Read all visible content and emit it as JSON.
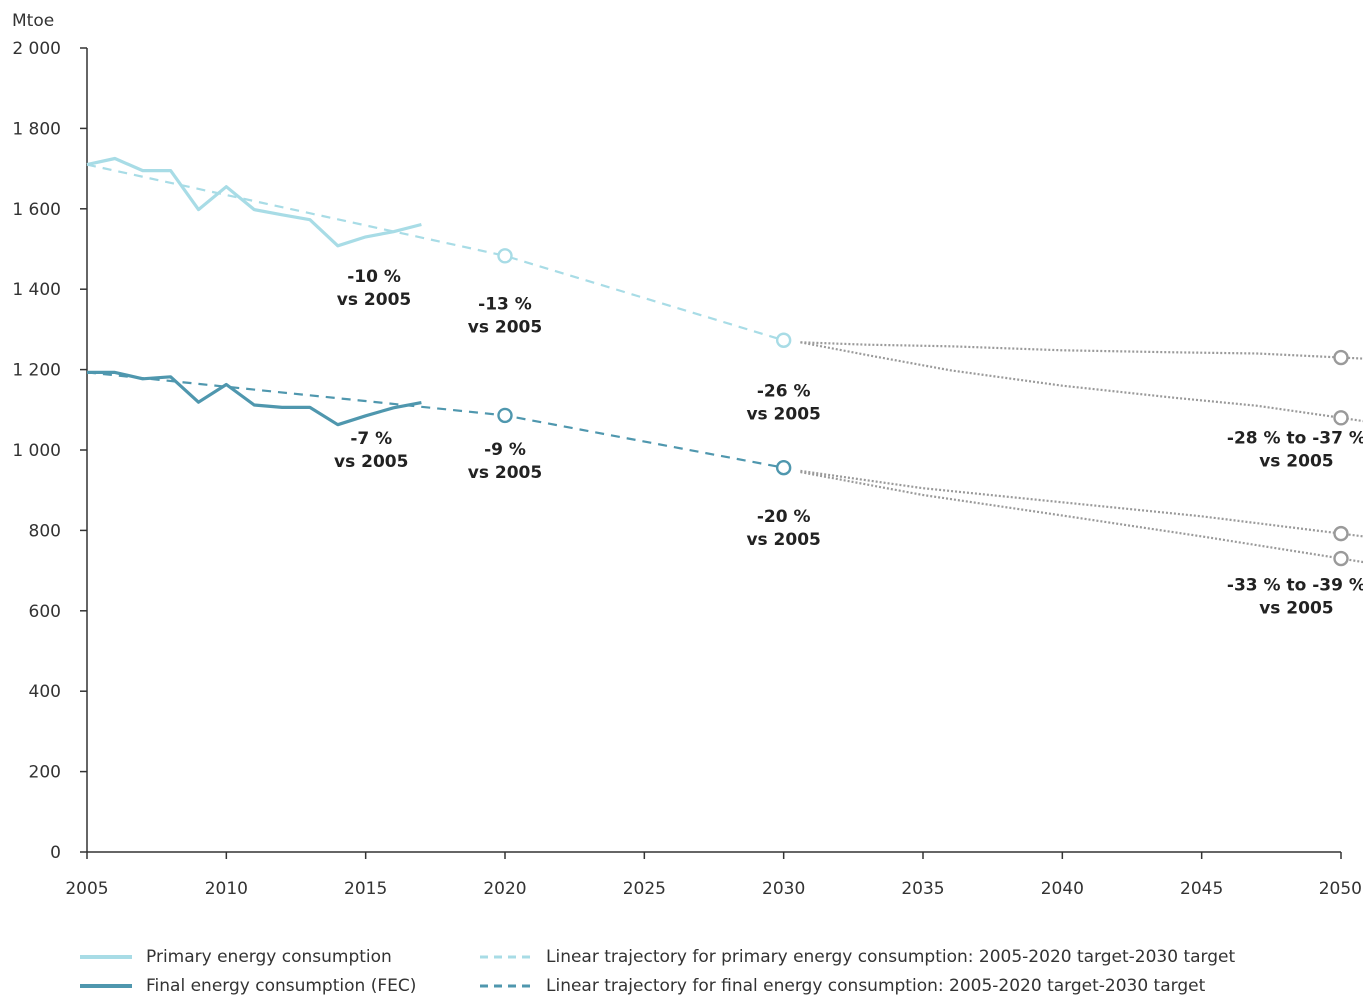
{
  "chart_data": {
    "type": "line",
    "unit_label": "Mtoe",
    "xlim": [
      2005,
      2050
    ],
    "ylim": [
      0,
      2000
    ],
    "x_ticks": [
      "2005",
      "2010",
      "2015",
      "2020",
      "2025",
      "2030",
      "2035",
      "2040",
      "2045",
      "2050"
    ],
    "y_ticks": [
      "0",
      "200",
      "400",
      "600",
      "800",
      "1 000",
      "1 200",
      "1 400",
      "1 600",
      "1 800",
      "2 000"
    ],
    "series": [
      {
        "name": "Primary energy consumption",
        "style": "solid",
        "color": "#a8dce6",
        "points": [
          [
            2005,
            1710
          ],
          [
            2006,
            1725
          ],
          [
            2007,
            1695
          ],
          [
            2008,
            1695
          ],
          [
            2009,
            1598
          ],
          [
            2010,
            1655
          ],
          [
            2011,
            1598
          ],
          [
            2012,
            1585
          ],
          [
            2013,
            1573
          ],
          [
            2014,
            1508
          ],
          [
            2015,
            1530
          ],
          [
            2016,
            1543
          ],
          [
            2017,
            1561
          ]
        ]
      },
      {
        "name": "Final energy consumption (FEC)",
        "style": "solid",
        "color": "#4f97ae",
        "points": [
          [
            2005,
            1193
          ],
          [
            2006,
            1193
          ],
          [
            2007,
            1177
          ],
          [
            2008,
            1182
          ],
          [
            2009,
            1119
          ],
          [
            2010,
            1163
          ],
          [
            2011,
            1112
          ],
          [
            2012,
            1106
          ],
          [
            2013,
            1106
          ],
          [
            2014,
            1063
          ],
          [
            2015,
            1085
          ],
          [
            2016,
            1105
          ],
          [
            2017,
            1118
          ]
        ]
      },
      {
        "name": "Linear trajectory for primary energy consumption: 2005-2020 target-2030 target",
        "style": "dashed",
        "color": "#a8dce6",
        "points": [
          [
            2005,
            1710
          ],
          [
            2020,
            1483
          ],
          [
            2030,
            1273
          ]
        ]
      },
      {
        "name": "Linear trajectory for final energy consumption: 2005-2020 target-2030 target",
        "style": "dashed",
        "color": "#4f97ae",
        "points": [
          [
            2005,
            1193
          ],
          [
            2020,
            1086
          ],
          [
            2030,
            956
          ]
        ]
      }
    ],
    "projections": [
      {
        "style": "dotted",
        "color": "#9a9a9a",
        "points": [
          [
            2030.6,
            1268
          ],
          [
            2033,
            1262
          ],
          [
            2036,
            1258
          ],
          [
            2040,
            1248
          ],
          [
            2044,
            1243
          ],
          [
            2047,
            1240
          ],
          [
            2050,
            1230
          ]
        ]
      },
      {
        "style": "dotted",
        "color": "#9a9a9a",
        "points": [
          [
            2030.6,
            1268
          ],
          [
            2033,
            1236
          ],
          [
            2036,
            1198
          ],
          [
            2040,
            1160
          ],
          [
            2044,
            1130
          ],
          [
            2047,
            1110
          ],
          [
            2050,
            1080
          ]
        ]
      },
      {
        "style": "dotted",
        "color": "#9a9a9a",
        "points": [
          [
            2030.6,
            948
          ],
          [
            2035,
            905
          ],
          [
            2040,
            870
          ],
          [
            2045,
            835
          ],
          [
            2050,
            792
          ]
        ]
      },
      {
        "style": "dotted",
        "color": "#9a9a9a",
        "points": [
          [
            2030.6,
            945
          ],
          [
            2035,
            888
          ],
          [
            2040,
            837
          ],
          [
            2045,
            785
          ],
          [
            2050,
            730
          ]
        ]
      }
    ],
    "markers": [
      {
        "x": 2020,
        "y": 1483,
        "color": "#a8dce6"
      },
      {
        "x": 2030,
        "y": 1273,
        "color": "#a8dce6"
      },
      {
        "x": 2020,
        "y": 1086,
        "color": "#4f97ae"
      },
      {
        "x": 2030,
        "y": 956,
        "color": "#4f97ae"
      },
      {
        "x": 2050,
        "y": 1230,
        "color": "#9a9a9a"
      },
      {
        "x": 2050,
        "y": 1080,
        "color": "#9a9a9a"
      },
      {
        "x": 2050,
        "y": 792,
        "color": "#9a9a9a"
      },
      {
        "x": 2050,
        "y": 730,
        "color": "#9a9a9a"
      }
    ],
    "annotations": [
      {
        "x": 2015.3,
        "y": 1418,
        "lines": [
          "-10 %",
          "vs 2005"
        ]
      },
      {
        "x": 2020,
        "y": 1350,
        "lines": [
          "-13 %",
          "vs 2005"
        ]
      },
      {
        "x": 2030,
        "y": 1133,
        "lines": [
          "-26 %",
          "vs 2005"
        ]
      },
      {
        "x": 2048.4,
        "y": 1016,
        "lines": [
          "-28 % to -37 %",
          "vs 2005"
        ]
      },
      {
        "x": 2015.2,
        "y": 1015,
        "lines": [
          "-7 %",
          "vs 2005"
        ]
      },
      {
        "x": 2020,
        "y": 988,
        "lines": [
          "-9 %",
          "vs 2005"
        ]
      },
      {
        "x": 2030,
        "y": 821,
        "lines": [
          "-20 %",
          "vs 2005"
        ]
      },
      {
        "x": 2048.4,
        "y": 651,
        "lines": [
          "-33 % to -39 %",
          "vs 2005"
        ]
      }
    ]
  },
  "legend": {
    "items": [
      {
        "label": "Primary energy consumption",
        "color": "#a8dce6",
        "style": "solid"
      },
      {
        "label": "Final energy consumption (FEC)",
        "color": "#4f97ae",
        "style": "solid"
      },
      {
        "label": "Linear trajectory for primary energy consumption: 2005-2020 target-2030 target",
        "color": "#a8dce6",
        "style": "dashed"
      },
      {
        "label": "Linear trajectory for final energy consumption: 2005-2020 target-2030 target",
        "color": "#4f97ae",
        "style": "dashed"
      }
    ]
  }
}
